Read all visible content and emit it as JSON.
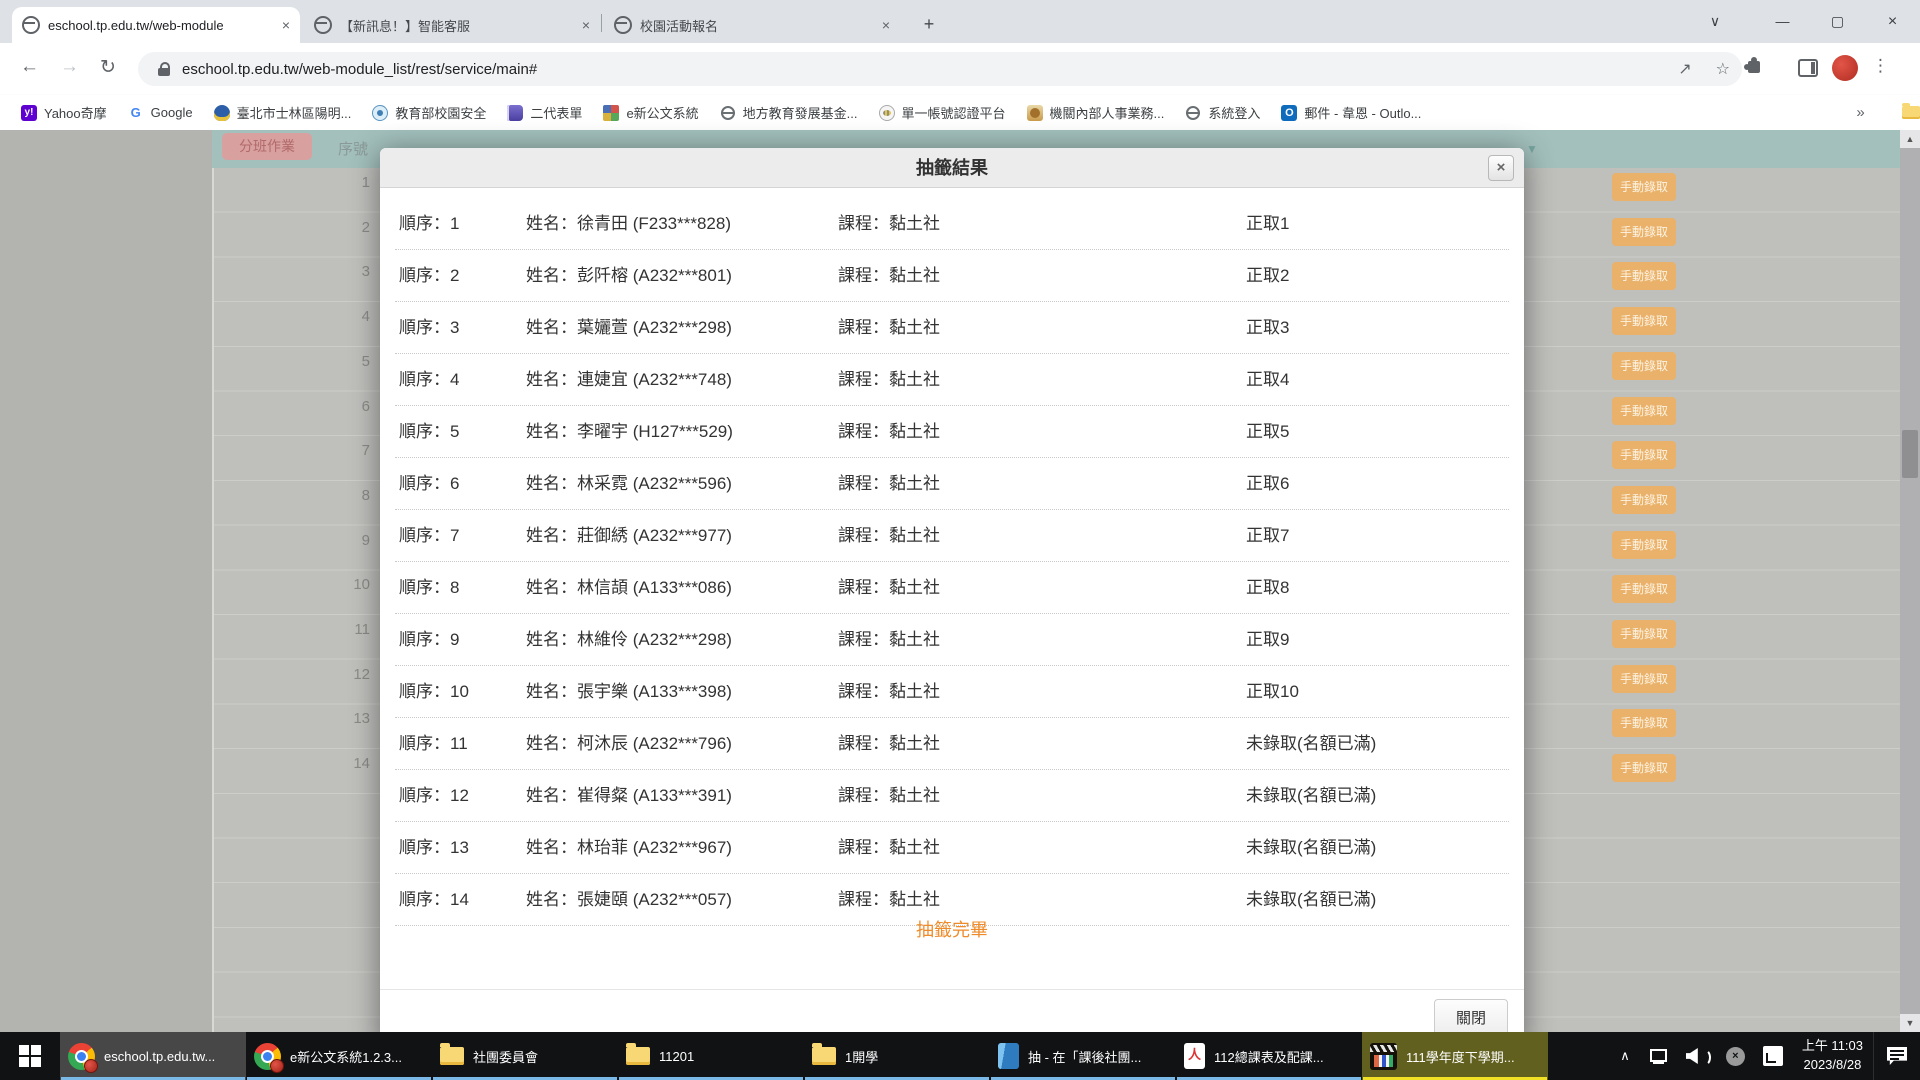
{
  "browser": {
    "tabs": [
      {
        "title": "eschool.tp.edu.tw/web-module",
        "active": true
      },
      {
        "title": "【新訊息！】智能客服",
        "active": false
      },
      {
        "title": "校園活動報名",
        "active": false
      }
    ],
    "url": "eschool.tp.edu.tw/web-module_list/rest/service/main#",
    "bookmarks": [
      {
        "label": "Yahoo奇摩",
        "icon": "yahoo"
      },
      {
        "label": "Google",
        "icon": "google"
      },
      {
        "label": "臺北市士林區陽明...",
        "icon": "shield"
      },
      {
        "label": "教育部校園安全",
        "icon": "moe"
      },
      {
        "label": "二代表單",
        "icon": "bookicon"
      },
      {
        "label": "e新公文系統",
        "icon": "enew"
      },
      {
        "label": "地方教育發展基金...",
        "icon": "globe2"
      },
      {
        "label": "單一帳號認證平台",
        "icon": "bee"
      },
      {
        "label": "機關內部人事業務...",
        "icon": "tiger"
      },
      {
        "label": "系統登入",
        "icon": "globe2"
      },
      {
        "label": "郵件 - 韋恩 - Outlo...",
        "icon": "outlook"
      }
    ],
    "bookmarks_overflow": "»",
    "other_bookmarks": "其他書籤"
  },
  "page": {
    "header_button": "分班作業",
    "header_col": "序號",
    "row_numbers": [
      "1",
      "2",
      "3",
      "4",
      "5",
      "6",
      "7",
      "8",
      "9",
      "10",
      "11",
      "12",
      "13",
      "14"
    ],
    "manual_button": "手動錄取"
  },
  "modal": {
    "title": "抽籤結果",
    "labels": {
      "order": "順序",
      "name": "姓名",
      "course": "課程",
      "colon": "："
    },
    "course": "黏土社",
    "rows": [
      {
        "order": "1",
        "name": "徐青田",
        "id": "F233***828",
        "status": "正取1"
      },
      {
        "order": "2",
        "name": "彭阡榕",
        "id": "A232***801",
        "status": "正取2"
      },
      {
        "order": "3",
        "name": "葉孋萱",
        "id": "A232***298",
        "status": "正取3"
      },
      {
        "order": "4",
        "name": "連婕宜",
        "id": "A232***748",
        "status": "正取4"
      },
      {
        "order": "5",
        "name": "李曜宇",
        "id": "H127***529",
        "status": "正取5"
      },
      {
        "order": "6",
        "name": "林采霓",
        "id": "A232***596",
        "status": "正取6"
      },
      {
        "order": "7",
        "name": "莊御綉",
        "id": "A232***977",
        "status": "正取7"
      },
      {
        "order": "8",
        "name": "林信頡",
        "id": "A133***086",
        "status": "正取8"
      },
      {
        "order": "9",
        "name": "林維伶",
        "id": "A232***298",
        "status": "正取9"
      },
      {
        "order": "10",
        "name": "張宇樂",
        "id": "A133***398",
        "status": "正取10"
      },
      {
        "order": "11",
        "name": "柯沐辰",
        "id": "A232***796",
        "status": "未錄取(名額已滿)"
      },
      {
        "order": "12",
        "name": "崔得粲",
        "id": "A133***391",
        "status": "未錄取(名額已滿)"
      },
      {
        "order": "13",
        "name": "林珆菲",
        "id": "A232***967",
        "status": "未錄取(名額已滿)"
      },
      {
        "order": "14",
        "name": "張婕頤",
        "id": "A232***057",
        "status": "未錄取(名額已滿)"
      }
    ],
    "footer_note": "抽籤完畢",
    "close_label": "關閉"
  },
  "taskbar": {
    "apps": [
      {
        "label": "eschool.tp.edu.tw...",
        "icon": "chrome",
        "state": "active"
      },
      {
        "label": "e新公文系統1.2.3...",
        "icon": "chrome",
        "state": ""
      },
      {
        "label": "社團委員會",
        "icon": "folder",
        "state": ""
      },
      {
        "label": "11201",
        "icon": "folder",
        "state": ""
      },
      {
        "label": "1開學",
        "icon": "folder",
        "state": ""
      },
      {
        "label": "抽 - 在「課後社團...",
        "icon": "doc",
        "state": ""
      },
      {
        "label": "112總課表及配課...",
        "icon": "pdf",
        "state": ""
      },
      {
        "label": "111學年度下學期...",
        "icon": "mpc",
        "state": "highlight"
      }
    ],
    "tray": {
      "time": "上午 11:03",
      "date": "2023/8/28"
    }
  }
}
